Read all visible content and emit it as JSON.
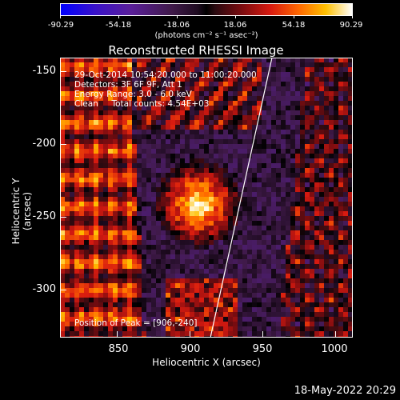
{
  "colorbar": {
    "ticks": [
      "-90.29",
      "-54.18",
      "-18.06",
      "18.06",
      "54.18",
      "90.29"
    ],
    "units": "(photons cm⁻² s⁻¹ asec⁻²)"
  },
  "title": "Reconstructed RHESSI Image",
  "info": {
    "time_range": "29-Oct-2014 10:54:20.000 to 11:00:20.000",
    "detectors": "Detectors: 3F 6F 9F, Att 1",
    "energy": "Energy Range: 3.0 - 6.0 keV",
    "algorithm": "Clean     Total counts: 4.54E+03",
    "peak": "Position of Peak = [906,-240]"
  },
  "axes": {
    "xlabel": "Heliocentric X (arcsec)",
    "ylabel": "Heliocentric Y (arcsec)",
    "xticks": [
      "850",
      "900",
      "950",
      "1000"
    ],
    "yticks": [
      "-150",
      "-200",
      "-250",
      "-300"
    ]
  },
  "datestamp": "18-May-2022 20:29",
  "colors": {
    "background": "#000000",
    "text": "#ffffff"
  }
}
